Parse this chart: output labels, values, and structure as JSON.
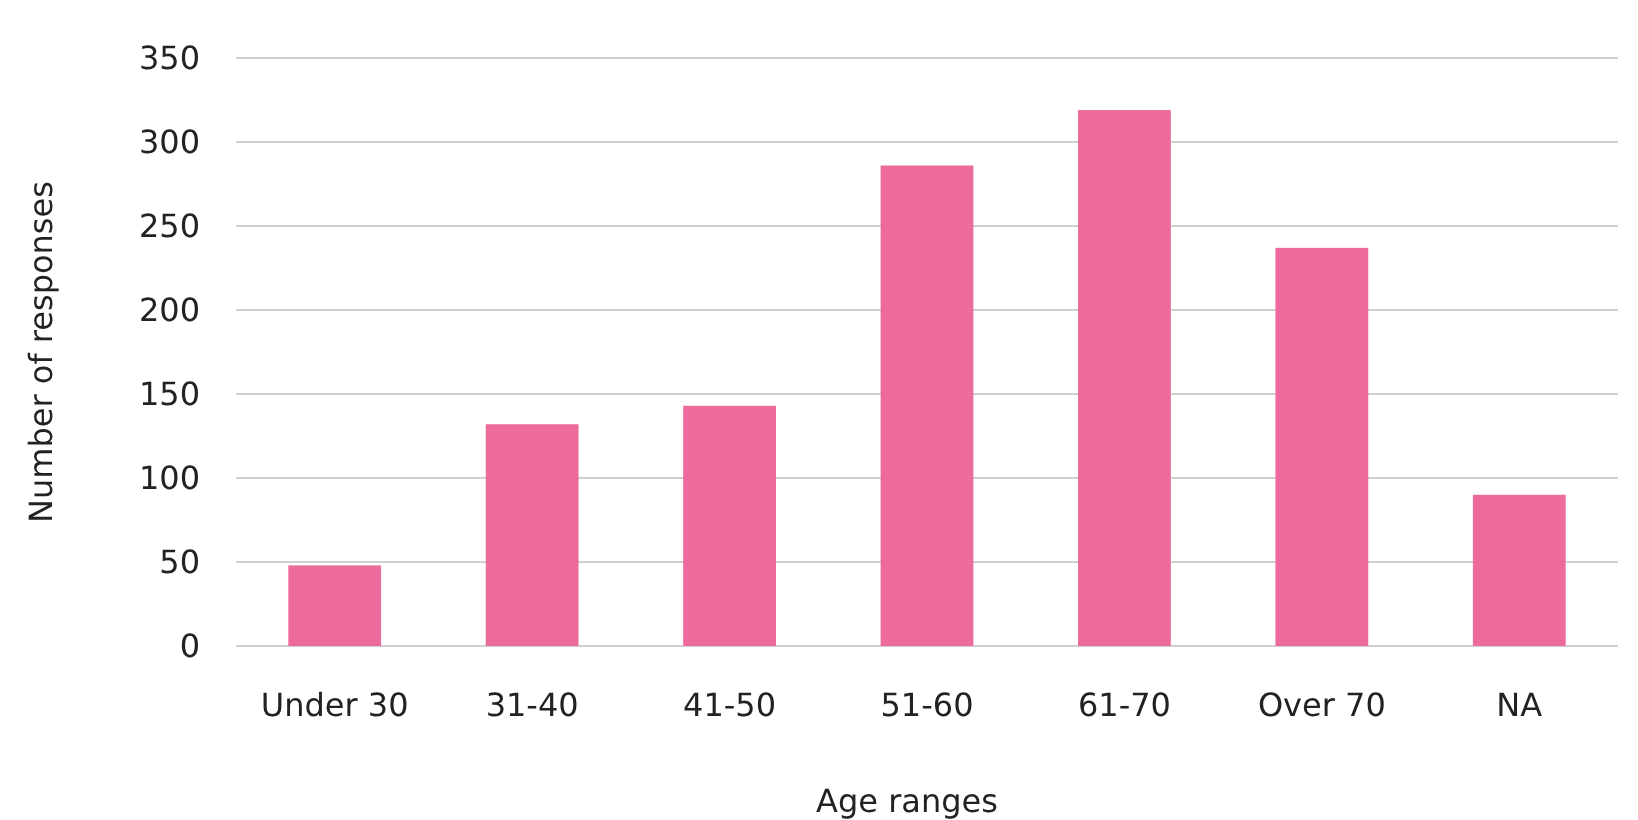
{
  "chart_data": {
    "type": "bar",
    "xlabel": "Age ranges",
    "ylabel": "Number of responses",
    "categories": [
      "Under 30",
      "31-40",
      "41-50",
      "51-60",
      "61-70",
      "Over 70",
      "NA"
    ],
    "values": [
      48,
      132,
      143,
      286,
      319,
      237,
      90
    ],
    "color": "#ec6a9c",
    "ylim": [
      0,
      350
    ],
    "yticks": [
      0,
      50,
      100,
      150,
      200,
      250,
      300,
      350
    ],
    "grid": "y"
  }
}
